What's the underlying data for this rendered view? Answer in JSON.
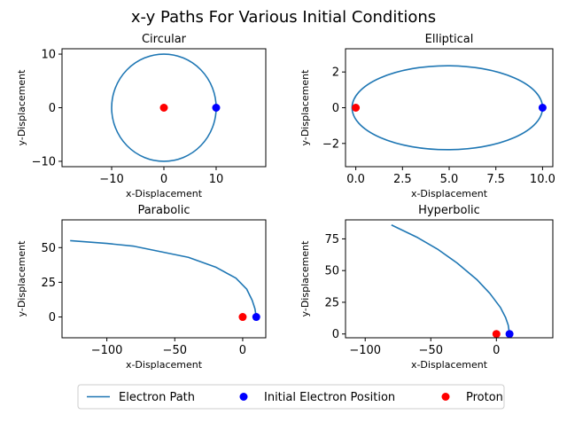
{
  "figure": {
    "suptitle": "x-y Paths For Various Initial Conditions",
    "colors": {
      "path": "#1f77b4",
      "electron": "#0000ff",
      "proton": "#ff0000"
    }
  },
  "legend": {
    "placement": "bottom-center",
    "entries": [
      {
        "label": "Electron Path",
        "kind": "line",
        "color": "#1f77b4"
      },
      {
        "label": "Initial Electron Position",
        "kind": "marker",
        "color": "#0000ff"
      },
      {
        "label": "Proton",
        "kind": "marker",
        "color": "#ff0000"
      }
    ]
  },
  "chart_data": [
    {
      "type": "line",
      "title": "Circular",
      "xlabel": "x-Displacement",
      "ylabel": "y-Displacement",
      "xlim": [
        -19.5,
        19.5
      ],
      "ylim": [
        -11,
        11
      ],
      "xticks": [
        -10,
        0,
        10
      ],
      "yticks": [
        -10,
        0,
        10
      ],
      "path": {
        "shape": "ellipse",
        "center": [
          0,
          0
        ],
        "rx": 10,
        "ry": 10
      },
      "electron_start": [
        10,
        0
      ],
      "proton": [
        0,
        0
      ]
    },
    {
      "type": "line",
      "title": "Elliptical",
      "xlabel": "x-Displacement",
      "ylabel": "y-Displacement",
      "xlim": [
        -0.55,
        10.55
      ],
      "ylim": [
        -3.3,
        3.3
      ],
      "xticks": [
        0.0,
        2.5,
        5.0,
        7.5,
        10.0
      ],
      "xtick_labels": [
        "0.0",
        "2.5",
        "5.0",
        "7.5",
        "10.0"
      ],
      "yticks": [
        -2,
        0,
        2
      ],
      "path": {
        "shape": "ellipse",
        "center": [
          4.9,
          0
        ],
        "rx": 5.1,
        "ry": 2.35
      },
      "electron_start": [
        10,
        0
      ],
      "proton": [
        0,
        0
      ]
    },
    {
      "type": "line",
      "title": "Parabolic",
      "xlabel": "x-Displacement",
      "ylabel": "y-Displacement",
      "xlim": [
        -133,
        17
      ],
      "ylim": [
        -15,
        70
      ],
      "xticks": [
        -100,
        -50,
        0
      ],
      "yticks": [
        0,
        25,
        50
      ],
      "path": {
        "shape": "polyline",
        "x": [
          10,
          9,
          7,
          3,
          -5,
          -20,
          -40,
          -60,
          -80,
          -100,
          -127
        ],
        "y": [
          0,
          6,
          12,
          20,
          28,
          36,
          43,
          47,
          51,
          53,
          55
        ]
      },
      "electron_start": [
        10,
        0
      ],
      "proton": [
        0,
        0
      ]
    },
    {
      "type": "line",
      "title": "Hyperbolic",
      "xlabel": "x-Displacement",
      "ylabel": "y-Displacement",
      "xlim": [
        -115,
        43
      ],
      "ylim": [
        -3,
        90
      ],
      "xticks": [
        -100,
        -50,
        0
      ],
      "yticks": [
        0,
        25,
        50,
        75
      ],
      "path": {
        "shape": "polyline",
        "x": [
          10,
          9,
          7,
          3,
          -5,
          -15,
          -30,
          -45,
          -60,
          -80
        ],
        "y": [
          0,
          7,
          13,
          21,
          32,
          43,
          56,
          67,
          76,
          86
        ]
      },
      "electron_start": [
        10,
        0
      ],
      "proton": [
        0,
        0
      ]
    }
  ]
}
